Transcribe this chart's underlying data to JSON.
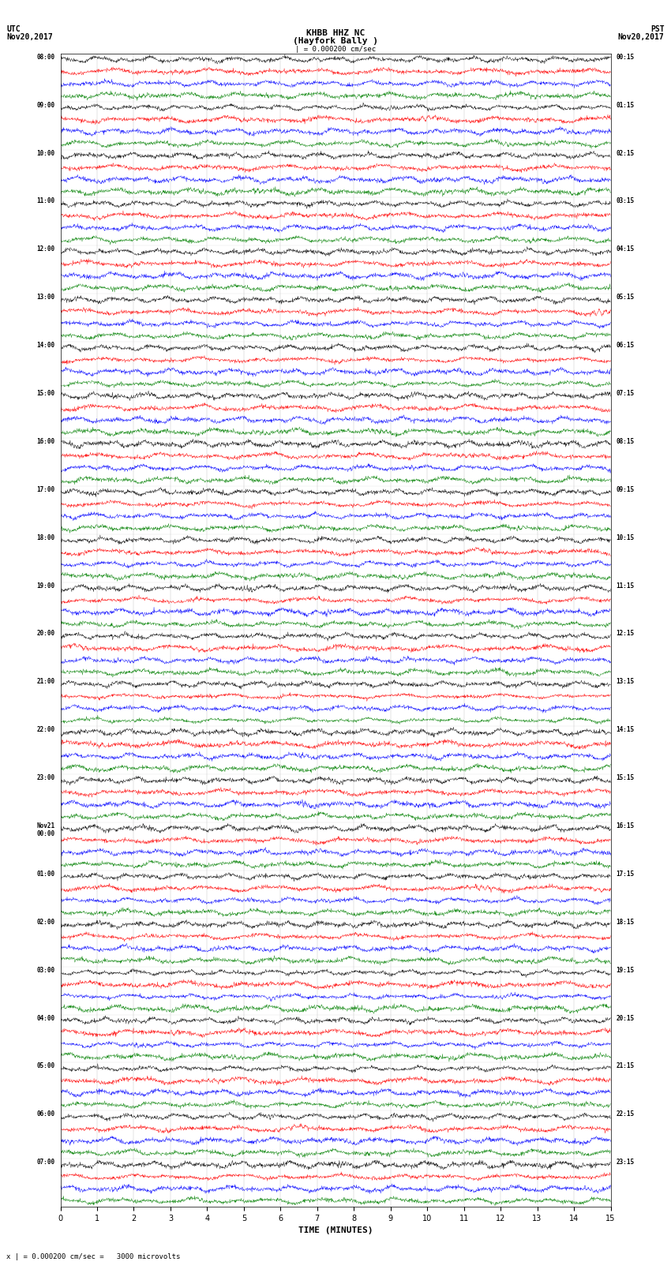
{
  "title_center": "KHBB HHZ NC\n(Hayfork Bally )",
  "scale_label": "| = 0.000200 cm/sec",
  "xlabel": "TIME (MINUTES)",
  "bottom_note": "x | = 0.000200 cm/sec =   3000 microvolts",
  "utc_labels": [
    "08:00",
    "09:00",
    "10:00",
    "11:00",
    "12:00",
    "13:00",
    "14:00",
    "15:00",
    "16:00",
    "17:00",
    "18:00",
    "19:00",
    "20:00",
    "21:00",
    "22:00",
    "23:00",
    "Nov21\n00:00",
    "01:00",
    "02:00",
    "03:00",
    "04:00",
    "05:00",
    "06:00",
    "07:00"
  ],
  "pst_labels": [
    "00:15",
    "01:15",
    "02:15",
    "03:15",
    "04:15",
    "05:15",
    "06:15",
    "07:15",
    "08:15",
    "09:15",
    "10:15",
    "11:15",
    "12:15",
    "13:15",
    "14:15",
    "15:15",
    "16:15",
    "17:15",
    "18:15",
    "19:15",
    "20:15",
    "21:15",
    "22:15",
    "23:15"
  ],
  "n_rows": 24,
  "traces_per_row": 4,
  "minutes": 15,
  "fig_width": 8.5,
  "fig_height": 16.13,
  "background_color": "white",
  "trace_color_cycle": [
    "black",
    "red",
    "blue",
    "green"
  ],
  "signal_scale": 0.42
}
